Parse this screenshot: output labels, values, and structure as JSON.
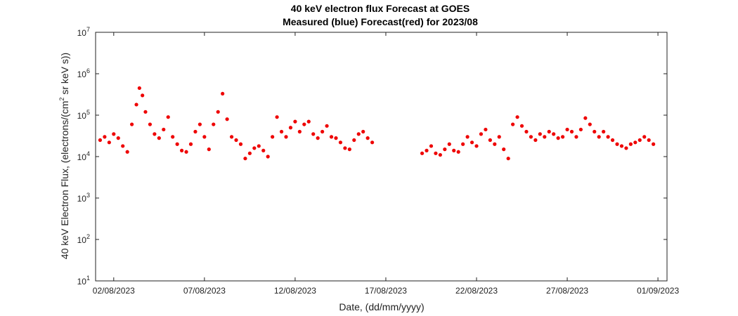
{
  "chart_data": {
    "type": "scatter",
    "title": "40 keV electron flux Forecast at GOES",
    "subtitle": "Measured (blue) Forecast(red) for 2023/08",
    "xlabel": "Date, (dd/mm/yyyy)",
    "ylabel_main": "40 keV Electron Flux, (electrons/(cm",
    "ylabel_sup": "2",
    "ylabel_tail": " sr keV s))",
    "yscale": "log",
    "ylim": [
      10,
      10000000
    ],
    "xlim": [
      "2023-08-01T00:00",
      "2023-09-01T12:00"
    ],
    "y_ticks": [
      {
        "value": 10,
        "base": "10",
        "exp": "1"
      },
      {
        "value": 100,
        "base": "10",
        "exp": "2"
      },
      {
        "value": 1000,
        "base": "10",
        "exp": "3"
      },
      {
        "value": 10000,
        "base": "10",
        "exp": "4"
      },
      {
        "value": 100000,
        "base": "10",
        "exp": "5"
      },
      {
        "value": 1000000,
        "base": "10",
        "exp": "6"
      },
      {
        "value": 10000000,
        "base": "10",
        "exp": "7"
      }
    ],
    "x_ticks": [
      {
        "date": "2023-08-02",
        "label": "02/08/2023"
      },
      {
        "date": "2023-08-07",
        "label": "07/08/2023"
      },
      {
        "date": "2023-08-12",
        "label": "12/08/2023"
      },
      {
        "date": "2023-08-17",
        "label": "17/08/2023"
      },
      {
        "date": "2023-08-22",
        "label": "22/08/2023"
      },
      {
        "date": "2023-08-27",
        "label": "27/08/2023"
      },
      {
        "date": "2023-09-01",
        "label": "01/09/2023"
      }
    ],
    "grid": false,
    "series": [
      {
        "color": "#ee0000",
        "marker": "circle",
        "points": [
          [
            "2023-08-01T06:00",
            25000
          ],
          [
            "2023-08-01T12:00",
            30000
          ],
          [
            "2023-08-01T18:00",
            22000
          ],
          [
            "2023-08-02T00:00",
            35000
          ],
          [
            "2023-08-02T06:00",
            28000
          ],
          [
            "2023-08-02T12:00",
            18000
          ],
          [
            "2023-08-02T18:00",
            13000
          ],
          [
            "2023-08-03T00:00",
            60000
          ],
          [
            "2023-08-03T06:00",
            180000
          ],
          [
            "2023-08-03T10:00",
            450000
          ],
          [
            "2023-08-03T14:00",
            300000
          ],
          [
            "2023-08-03T18:00",
            120000
          ],
          [
            "2023-08-04T00:00",
            60000
          ],
          [
            "2023-08-04T06:00",
            35000
          ],
          [
            "2023-08-04T12:00",
            28000
          ],
          [
            "2023-08-04T18:00",
            45000
          ],
          [
            "2023-08-05T00:00",
            90000
          ],
          [
            "2023-08-05T06:00",
            30000
          ],
          [
            "2023-08-05T12:00",
            20000
          ],
          [
            "2023-08-05T18:00",
            14000
          ],
          [
            "2023-08-06T00:00",
            13000
          ],
          [
            "2023-08-06T06:00",
            20000
          ],
          [
            "2023-08-06T12:00",
            40000
          ],
          [
            "2023-08-06T18:00",
            60000
          ],
          [
            "2023-08-07T00:00",
            30000
          ],
          [
            "2023-08-07T06:00",
            15000
          ],
          [
            "2023-08-07T12:00",
            60000
          ],
          [
            "2023-08-07T18:00",
            120000
          ],
          [
            "2023-08-08T00:00",
            330000
          ],
          [
            "2023-08-08T06:00",
            80000
          ],
          [
            "2023-08-08T12:00",
            30000
          ],
          [
            "2023-08-08T18:00",
            25000
          ],
          [
            "2023-08-09T00:00",
            20000
          ],
          [
            "2023-08-09T06:00",
            9000
          ],
          [
            "2023-08-09T12:00",
            12000
          ],
          [
            "2023-08-09T18:00",
            16000
          ],
          [
            "2023-08-10T00:00",
            18000
          ],
          [
            "2023-08-10T06:00",
            14000
          ],
          [
            "2023-08-10T12:00",
            10000
          ],
          [
            "2023-08-10T18:00",
            30000
          ],
          [
            "2023-08-11T00:00",
            90000
          ],
          [
            "2023-08-11T06:00",
            40000
          ],
          [
            "2023-08-11T12:00",
            30000
          ],
          [
            "2023-08-11T18:00",
            50000
          ],
          [
            "2023-08-12T00:00",
            70000
          ],
          [
            "2023-08-12T06:00",
            40000
          ],
          [
            "2023-08-12T12:00",
            60000
          ],
          [
            "2023-08-12T18:00",
            70000
          ],
          [
            "2023-08-13T00:00",
            35000
          ],
          [
            "2023-08-13T06:00",
            28000
          ],
          [
            "2023-08-13T12:00",
            40000
          ],
          [
            "2023-08-13T18:00",
            55000
          ],
          [
            "2023-08-14T00:00",
            30000
          ],
          [
            "2023-08-14T06:00",
            28000
          ],
          [
            "2023-08-14T12:00",
            22000
          ],
          [
            "2023-08-14T18:00",
            16000
          ],
          [
            "2023-08-15T00:00",
            15000
          ],
          [
            "2023-08-15T06:00",
            25000
          ],
          [
            "2023-08-15T12:00",
            35000
          ],
          [
            "2023-08-15T18:00",
            40000
          ],
          [
            "2023-08-16T00:00",
            28000
          ],
          [
            "2023-08-16T06:00",
            22000
          ],
          [
            "2023-08-19T00:00",
            12000
          ],
          [
            "2023-08-19T06:00",
            14000
          ],
          [
            "2023-08-19T12:00",
            18000
          ],
          [
            "2023-08-19T18:00",
            12000
          ],
          [
            "2023-08-20T00:00",
            11000
          ],
          [
            "2023-08-20T06:00",
            15000
          ],
          [
            "2023-08-20T12:00",
            20000
          ],
          [
            "2023-08-20T18:00",
            14000
          ],
          [
            "2023-08-21T00:00",
            13000
          ],
          [
            "2023-08-21T06:00",
            20000
          ],
          [
            "2023-08-21T12:00",
            30000
          ],
          [
            "2023-08-21T18:00",
            22000
          ],
          [
            "2023-08-22T00:00",
            18000
          ],
          [
            "2023-08-22T06:00",
            35000
          ],
          [
            "2023-08-22T12:00",
            45000
          ],
          [
            "2023-08-22T18:00",
            25000
          ],
          [
            "2023-08-23T00:00",
            20000
          ],
          [
            "2023-08-23T06:00",
            30000
          ],
          [
            "2023-08-23T12:00",
            15000
          ],
          [
            "2023-08-23T18:00",
            9000
          ],
          [
            "2023-08-24T00:00",
            60000
          ],
          [
            "2023-08-24T06:00",
            90000
          ],
          [
            "2023-08-24T12:00",
            55000
          ],
          [
            "2023-08-24T18:00",
            40000
          ],
          [
            "2023-08-25T00:00",
            30000
          ],
          [
            "2023-08-25T06:00",
            25000
          ],
          [
            "2023-08-25T12:00",
            35000
          ],
          [
            "2023-08-25T18:00",
            30000
          ],
          [
            "2023-08-26T00:00",
            40000
          ],
          [
            "2023-08-26T06:00",
            35000
          ],
          [
            "2023-08-26T12:00",
            28000
          ],
          [
            "2023-08-26T18:00",
            30000
          ],
          [
            "2023-08-27T00:00",
            45000
          ],
          [
            "2023-08-27T06:00",
            40000
          ],
          [
            "2023-08-27T12:00",
            30000
          ],
          [
            "2023-08-27T18:00",
            45000
          ],
          [
            "2023-08-28T00:00",
            85000
          ],
          [
            "2023-08-28T06:00",
            60000
          ],
          [
            "2023-08-28T12:00",
            40000
          ],
          [
            "2023-08-28T18:00",
            30000
          ],
          [
            "2023-08-29T00:00",
            40000
          ],
          [
            "2023-08-29T06:00",
            30000
          ],
          [
            "2023-08-29T12:00",
            25000
          ],
          [
            "2023-08-29T18:00",
            20000
          ],
          [
            "2023-08-30T00:00",
            18000
          ],
          [
            "2023-08-30T06:00",
            16000
          ],
          [
            "2023-08-30T12:00",
            20000
          ],
          [
            "2023-08-30T18:00",
            22000
          ],
          [
            "2023-08-31T00:00",
            25000
          ],
          [
            "2023-08-31T06:00",
            30000
          ],
          [
            "2023-08-31T12:00",
            25000
          ],
          [
            "2023-08-31T18:00",
            20000
          ]
        ]
      }
    ]
  }
}
